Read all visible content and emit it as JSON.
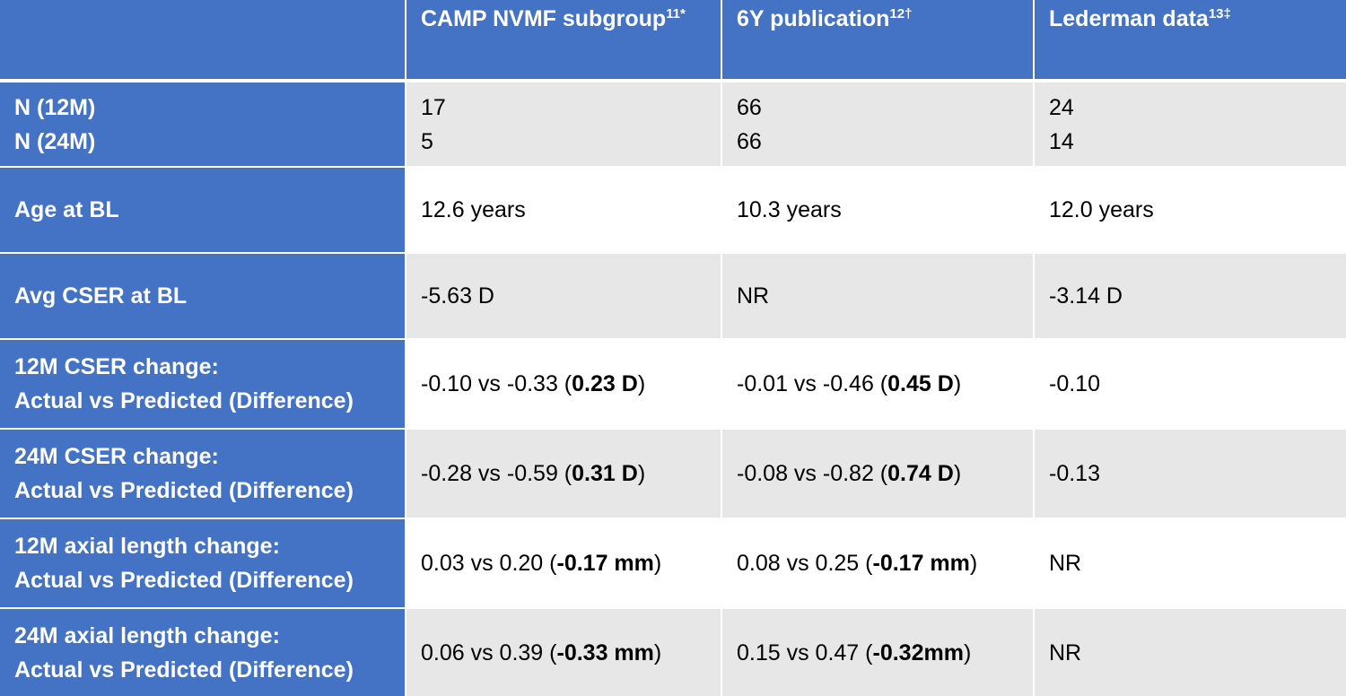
{
  "header": {
    "col1": {
      "name": "CAMP NVMF subgroup",
      "sup": "11*"
    },
    "col2": {
      "name": "6Y publication",
      "sup": "12†"
    },
    "col3": {
      "name": "Lederman data",
      "sup": "13‡"
    }
  },
  "rows": [
    {
      "label_lines": [
        "N (12M)",
        "N (24M)"
      ],
      "cells": [
        {
          "lines": [
            "17",
            "5"
          ]
        },
        {
          "lines": [
            "66",
            "66"
          ]
        },
        {
          "lines": [
            "24",
            "14"
          ]
        }
      ]
    },
    {
      "label_lines": [
        "Age at BL"
      ],
      "cells": [
        {
          "text": "12.6 years"
        },
        {
          "text": "10.3 years"
        },
        {
          "text": "12.0 years"
        }
      ]
    },
    {
      "label_lines": [
        "Avg CSER at BL"
      ],
      "cells": [
        {
          "text": "-5.63 D"
        },
        {
          "text": "NR"
        },
        {
          "text": "-3.14 D"
        }
      ]
    },
    {
      "label_lines": [
        "12M CSER change:",
        "Actual vs Predicted (Difference)"
      ],
      "cells": [
        {
          "pre": "-0.10 vs -0.33 (",
          "sign": "",
          "bold": "0.23 D",
          "post": ")"
        },
        {
          "pre": "-0.01 vs -0.46 (",
          "sign": "",
          "bold": "0.45 D",
          "post": ")"
        },
        {
          "text": "-0.10"
        }
      ]
    },
    {
      "label_lines": [
        "24M CSER change:",
        "Actual vs Predicted (Difference)"
      ],
      "cells": [
        {
          "pre": "-0.28 vs -0.59 (",
          "sign": "",
          "bold": "0.31 D",
          "post": ")"
        },
        {
          "pre": "-0.08 vs -0.82 (",
          "sign": "",
          "bold": "0.74 D",
          "post": ")"
        },
        {
          "text": "-0.13"
        }
      ]
    },
    {
      "label_lines": [
        "12M axial length change:",
        "Actual vs Predicted (Difference)"
      ],
      "cells": [
        {
          "pre": "0.03 vs 0.20 (",
          "sign": "-",
          "bold": "0.17 mm",
          "post": ")"
        },
        {
          "pre": "0.08 vs 0.25 (",
          "sign": "-",
          "bold": "0.17 mm",
          "post": ")"
        },
        {
          "text": "NR"
        }
      ]
    },
    {
      "label_lines": [
        "24M axial length change:",
        "Actual vs Predicted (Difference)"
      ],
      "cells": [
        {
          "pre": "0.06 vs 0.39 (",
          "sign": "-",
          "bold": "0.33 mm",
          "post": ")"
        },
        {
          "pre": "0.15 vs 0.47 (",
          "sign": "-",
          "bold": "0.32mm",
          "post": ")"
        },
        {
          "text": "NR"
        }
      ]
    }
  ]
}
